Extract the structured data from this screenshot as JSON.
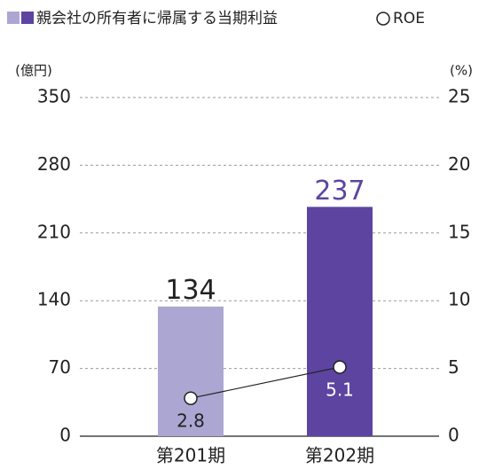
{
  "chart_data": {
    "type": "bar",
    "categories": [
      "第201期",
      "第202期"
    ],
    "series": [
      {
        "name": "親会社の所有者に帰属する当期利益",
        "type": "bar",
        "colors": [
          "#aca6d2",
          "#5d44a0"
        ],
        "label_colors": [
          "#222222",
          "#5d44a0"
        ],
        "values": [
          134,
          237
        ]
      },
      {
        "name": "ROE",
        "type": "line",
        "axis": "y2",
        "color": "#222222",
        "values": [
          2.8,
          5.1
        ]
      }
    ],
    "ylabel": "(億円)",
    "y2label": "(%)",
    "ylim": [
      0,
      350
    ],
    "yticks": [
      0,
      70,
      140,
      210,
      280,
      350
    ],
    "y2lim": [
      0,
      25
    ],
    "y2ticks": [
      0,
      5,
      10,
      15,
      20,
      25
    ],
    "grid": true
  }
}
